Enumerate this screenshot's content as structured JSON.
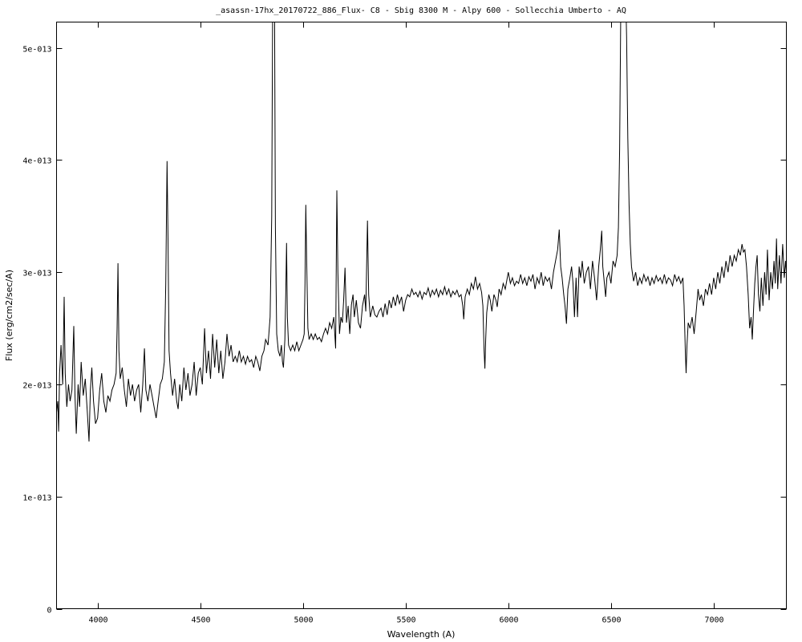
{
  "chart_data": {
    "type": "line",
    "title": "_asassn-17hx_20170722_886_Flux- C8 - Sbig 8300 M - Alpy 600 - Sollecchia Umberto - AQ",
    "xlabel": "Wavelength (A)",
    "ylabel": "Flux (erg/cm2/sec/A)",
    "xlim": [
      3800,
      7354
    ],
    "ylim": [
      0,
      5.23e-13
    ],
    "grid": false,
    "legend": "none",
    "line_color": "#000000",
    "x_ticks": [
      4000,
      4500,
      5000,
      5500,
      6000,
      6500,
      7000
    ],
    "x_tick_labels": [
      "4000",
      "4500",
      "5000",
      "5500",
      "6000",
      "6500",
      "7000"
    ],
    "y_ticks": [
      0,
      1e-13,
      2e-13,
      3e-13,
      4e-13,
      5e-13
    ],
    "y_tick_labels": [
      "0",
      "1e-013",
      "2e-013",
      "3e-013",
      "4e-013",
      "5e-013"
    ],
    "series": [
      {
        "x": [
          3800,
          3806,
          3810,
          3815,
          3822,
          3830,
          3837,
          3842,
          3850,
          3858,
          3866,
          3875,
          3884,
          3890,
          3896,
          3905,
          3912,
          3920,
          3930,
          3940,
          3950,
          3958,
          3965,
          3972,
          3980,
          3990,
          4000,
          4010,
          4020,
          4030,
          4040,
          4050,
          4060,
          4070,
          4080,
          4090,
          4095,
          4099,
          4104,
          4110,
          4120,
          4130,
          4140,
          4150,
          4160,
          4170,
          4180,
          4190,
          4200,
          4210,
          4220,
          4228,
          4235,
          4245,
          4255,
          4265,
          4275,
          4285,
          4295,
          4305,
          4315,
          4325,
          4332,
          4338,
          4343,
          4348,
          4355,
          4365,
          4375,
          4385,
          4392,
          4400,
          4410,
          4420,
          4430,
          4440,
          4450,
          4460,
          4470,
          4480,
          4490,
          4500,
          4510,
          4521,
          4530,
          4540,
          4550,
          4560,
          4570,
          4580,
          4590,
          4600,
          4610,
          4620,
          4630,
          4640,
          4650,
          4660,
          4670,
          4680,
          4690,
          4700,
          4710,
          4720,
          4730,
          4740,
          4750,
          4760,
          4770,
          4780,
          4790,
          4800,
          4810,
          4818,
          4830,
          4840,
          4848,
          4853,
          4861,
          4866,
          4872,
          4880,
          4888,
          4895,
          4900,
          4905,
          4912,
          4916,
          4920,
          4924,
          4930,
          4940,
          4950,
          4960,
          4970,
          4980,
          4990,
          5000,
          5006,
          5010,
          5014,
          5018,
          5024,
          5030,
          5040,
          5050,
          5060,
          5070,
          5080,
          5090,
          5100,
          5110,
          5120,
          5130,
          5140,
          5150,
          5159,
          5165,
          5170,
          5178,
          5185,
          5192,
          5198,
          5205,
          5212,
          5220,
          5228,
          5236,
          5244,
          5250,
          5260,
          5270,
          5280,
          5290,
          5300,
          5306,
          5314,
          5320,
          5328,
          5340,
          5350,
          5360,
          5370,
          5380,
          5390,
          5400,
          5410,
          5420,
          5430,
          5440,
          5450,
          5460,
          5470,
          5480,
          5490,
          5500,
          5510,
          5520,
          5530,
          5540,
          5550,
          5560,
          5570,
          5580,
          5590,
          5600,
          5610,
          5620,
          5630,
          5640,
          5650,
          5660,
          5670,
          5680,
          5690,
          5700,
          5710,
          5720,
          5730,
          5740,
          5750,
          5760,
          5770,
          5778,
          5783,
          5790,
          5800,
          5810,
          5820,
          5830,
          5840,
          5850,
          5860,
          5870,
          5876,
          5882,
          5886,
          5890,
          5895,
          5905,
          5912,
          5920,
          5930,
          5940,
          5946,
          5955,
          5965,
          5975,
          5985,
          5995,
          6000,
          6010,
          6020,
          6030,
          6040,
          6050,
          6060,
          6070,
          6080,
          6090,
          6100,
          6110,
          6120,
          6130,
          6140,
          6150,
          6160,
          6170,
          6180,
          6190,
          6200,
          6210,
          6220,
          6230,
          6240,
          6248,
          6255,
          6262,
          6270,
          6276,
          6283,
          6290,
          6300,
          6308,
          6315,
          6322,
          6330,
          6337,
          6345,
          6352,
          6360,
          6370,
          6380,
          6390,
          6400,
          6410,
          6420,
          6430,
          6440,
          6448,
          6455,
          6460,
          6468,
          6474,
          6480,
          6490,
          6500,
          6510,
          6520,
          6530,
          6536,
          6542,
          6548,
          6555,
          6570,
          6576,
          6582,
          6588,
          6594,
          6600,
          6610,
          6620,
          6630,
          6640,
          6650,
          6660,
          6670,
          6680,
          6690,
          6700,
          6710,
          6720,
          6730,
          6740,
          6750,
          6760,
          6770,
          6780,
          6790,
          6800,
          6810,
          6820,
          6830,
          6840,
          6850,
          6856,
          6862,
          6866,
          6870,
          6876,
          6885,
          6895,
          6905,
          6915,
          6924,
          6932,
          6940,
          6950,
          6960,
          6970,
          6980,
          6990,
          7000,
          7010,
          7020,
          7030,
          7040,
          7050,
          7060,
          7070,
          7080,
          7090,
          7100,
          7110,
          7120,
          7130,
          7138,
          7145,
          7152,
          7160,
          7168,
          7175,
          7182,
          7188,
          7195,
          7200,
          7206,
          7212,
          7218,
          7225,
          7232,
          7240,
          7248,
          7255,
          7262,
          7270,
          7278,
          7286,
          7294,
          7300,
          7306,
          7312,
          7320,
          7328,
          7336,
          7344,
          7350,
          7354
        ],
        "y": [
          1.75e-13,
          1.85e-13,
          1.58e-13,
          2.1e-13,
          2.35e-13,
          2e-13,
          2.78e-13,
          2.1e-13,
          1.8e-13,
          2e-13,
          1.85e-13,
          1.95e-13,
          2.52e-13,
          1.9e-13,
          1.56e-13,
          2e-13,
          1.8e-13,
          2.2e-13,
          1.9e-13,
          2.05e-13,
          1.75e-13,
          1.49e-13,
          1.95e-13,
          2.15e-13,
          1.85e-13,
          1.65e-13,
          1.7e-13,
          1.95e-13,
          2.1e-13,
          1.85e-13,
          1.75e-13,
          1.9e-13,
          1.85e-13,
          1.95e-13,
          2e-13,
          2.1e-13,
          2.5e-13,
          3.08e-13,
          2.3e-13,
          2.05e-13,
          2.15e-13,
          1.95e-13,
          1.8e-13,
          2.05e-13,
          1.9e-13,
          2e-13,
          1.85e-13,
          1.95e-13,
          2e-13,
          1.75e-13,
          2e-13,
          2.32e-13,
          1.95e-13,
          1.85e-13,
          2e-13,
          1.9e-13,
          1.8e-13,
          1.7e-13,
          1.85e-13,
          2e-13,
          2.05e-13,
          2.2e-13,
          2.9e-13,
          3.99e-13,
          3.3e-13,
          2.3e-13,
          2.1e-13,
          1.9e-13,
          2.05e-13,
          1.85e-13,
          1.78e-13,
          2e-13,
          1.85e-13,
          2.15e-13,
          1.95e-13,
          2.1e-13,
          1.9e-13,
          2e-13,
          2.2e-13,
          1.9e-13,
          2.1e-13,
          2.15e-13,
          2e-13,
          2.5e-13,
          2.1e-13,
          2.3e-13,
          2.05e-13,
          2.45e-13,
          2.15e-13,
          2.4e-13,
          2.1e-13,
          2.3e-13,
          2.05e-13,
          2.2e-13,
          2.45e-13,
          2.25e-13,
          2.35e-13,
          2.2e-13,
          2.25e-13,
          2.2e-13,
          2.3e-13,
          2.2e-13,
          2.25e-13,
          2.18e-13,
          2.25e-13,
          2.2e-13,
          2.22e-13,
          2.15e-13,
          2.25e-13,
          2.2e-13,
          2.12e-13,
          2.25e-13,
          2.3e-13,
          2.4e-13,
          2.35e-13,
          2.6e-13,
          3.5e-13,
          5.6e-13,
          5.6e-13,
          3.4e-13,
          2.45e-13,
          2.3e-13,
          2.25e-13,
          2.35e-13,
          2.2e-13,
          2.15e-13,
          2.4e-13,
          2.8e-13,
          3.26e-13,
          2.6e-13,
          2.35e-13,
          2.3e-13,
          2.35e-13,
          2.3e-13,
          2.38e-13,
          2.3e-13,
          2.35e-13,
          2.4e-13,
          2.45e-13,
          2.9e-13,
          3.6e-13,
          3.1e-13,
          2.5e-13,
          2.4e-13,
          2.45e-13,
          2.4e-13,
          2.45e-13,
          2.4e-13,
          2.42e-13,
          2.38e-13,
          2.45e-13,
          2.5e-13,
          2.45e-13,
          2.55e-13,
          2.5e-13,
          2.6e-13,
          2.32e-13,
          3.73e-13,
          3e-13,
          2.45e-13,
          2.6e-13,
          2.55e-13,
          2.75e-13,
          3.04e-13,
          2.55e-13,
          2.7e-13,
          2.45e-13,
          2.71e-13,
          2.8e-13,
          2.6e-13,
          2.75e-13,
          2.55e-13,
          2.5e-13,
          2.7e-13,
          2.8e-13,
          2.65e-13,
          3.46e-13,
          2.8e-13,
          2.6e-13,
          2.7e-13,
          2.62e-13,
          2.6e-13,
          2.65e-13,
          2.68e-13,
          2.6e-13,
          2.72e-13,
          2.62e-13,
          2.75e-13,
          2.68e-13,
          2.78e-13,
          2.7e-13,
          2.8e-13,
          2.72e-13,
          2.78e-13,
          2.65e-13,
          2.75e-13,
          2.8e-13,
          2.78e-13,
          2.85e-13,
          2.8e-13,
          2.82e-13,
          2.78e-13,
          2.83e-13,
          2.76e-13,
          2.82e-13,
          2.8e-13,
          2.86e-13,
          2.78e-13,
          2.84e-13,
          2.8e-13,
          2.85e-13,
          2.78e-13,
          2.84e-13,
          2.8e-13,
          2.87e-13,
          2.8e-13,
          2.85e-13,
          2.78e-13,
          2.83e-13,
          2.8e-13,
          2.84e-13,
          2.78e-13,
          2.8e-13,
          2.7e-13,
          2.58e-13,
          2.78e-13,
          2.85e-13,
          2.8e-13,
          2.9e-13,
          2.85e-13,
          2.96e-13,
          2.85e-13,
          2.9e-13,
          2.82e-13,
          2.7e-13,
          2.3e-13,
          2.14e-13,
          2.4e-13,
          2.64e-13,
          2.8e-13,
          2.75e-13,
          2.65e-13,
          2.8e-13,
          2.75e-13,
          2.69e-13,
          2.85e-13,
          2.8e-13,
          2.9e-13,
          2.85e-13,
          2.95e-13,
          3e-13,
          2.9e-13,
          2.95e-13,
          2.88e-13,
          2.92e-13,
          2.9e-13,
          2.98e-13,
          2.9e-13,
          2.95e-13,
          2.88e-13,
          2.96e-13,
          2.92e-13,
          2.98e-13,
          2.85e-13,
          2.95e-13,
          2.9e-13,
          3e-13,
          2.88e-13,
          2.96e-13,
          2.92e-13,
          2.95e-13,
          2.85e-13,
          3e-13,
          3.1e-13,
          3.2e-13,
          3.38e-13,
          3.05e-13,
          2.95e-13,
          2.8e-13,
          2.7e-13,
          2.54e-13,
          2.85e-13,
          2.95e-13,
          3.05e-13,
          2.9e-13,
          2.6e-13,
          2.95e-13,
          2.6e-13,
          3.05e-13,
          2.95e-13,
          3.1e-13,
          2.9e-13,
          3e-13,
          3.05e-13,
          2.85e-13,
          3.1e-13,
          2.95e-13,
          2.75e-13,
          3.05e-13,
          3.2e-13,
          3.37e-13,
          3.05e-13,
          2.9e-13,
          2.78e-13,
          2.95e-13,
          3e-13,
          2.9e-13,
          3.1e-13,
          3.05e-13,
          3.15e-13,
          3.4e-13,
          4.1e-13,
          5.4e-13,
          5.6e-13,
          5.6e-13,
          5.1e-13,
          4.2e-13,
          3.6e-13,
          3.25e-13,
          3.05e-13,
          2.92e-13,
          3e-13,
          2.88e-13,
          2.95e-13,
          2.9e-13,
          2.98e-13,
          2.92e-13,
          2.96e-13,
          2.88e-13,
          2.95e-13,
          2.9e-13,
          2.97e-13,
          2.92e-13,
          2.95e-13,
          2.9e-13,
          2.98e-13,
          2.9e-13,
          2.95e-13,
          2.93e-13,
          2.88e-13,
          2.98e-13,
          2.92e-13,
          2.96e-13,
          2.9e-13,
          2.95e-13,
          2.7e-13,
          2.3e-13,
          2.1e-13,
          2.35e-13,
          2.55e-13,
          2.5e-13,
          2.6e-13,
          2.45e-13,
          2.65e-13,
          2.85e-13,
          2.75e-13,
          2.8e-13,
          2.7e-13,
          2.85e-13,
          2.8e-13,
          2.9e-13,
          2.8e-13,
          2.95e-13,
          2.85e-13,
          3e-13,
          2.9e-13,
          3.05e-13,
          2.95e-13,
          3.1e-13,
          3e-13,
          3.15e-13,
          3.05e-13,
          3.15e-13,
          3.1e-13,
          3.2e-13,
          3.15e-13,
          3.25e-13,
          3.18e-13,
          3.2e-13,
          3.05e-13,
          2.8e-13,
          2.5e-13,
          2.6e-13,
          2.4e-13,
          2.7e-13,
          2.9e-13,
          3.05e-13,
          3.15e-13,
          2.8e-13,
          2.65e-13,
          2.95e-13,
          2.7e-13,
          3e-13,
          2.8e-13,
          3.2e-13,
          2.75e-13,
          3e-13,
          2.85e-13,
          3.1e-13,
          2.9e-13,
          3.3e-13,
          2.85e-13,
          3.15e-13,
          2.9e-13,
          3.25e-13,
          2.95e-13,
          3.1e-13,
          3e-13
        ]
      }
    ]
  }
}
